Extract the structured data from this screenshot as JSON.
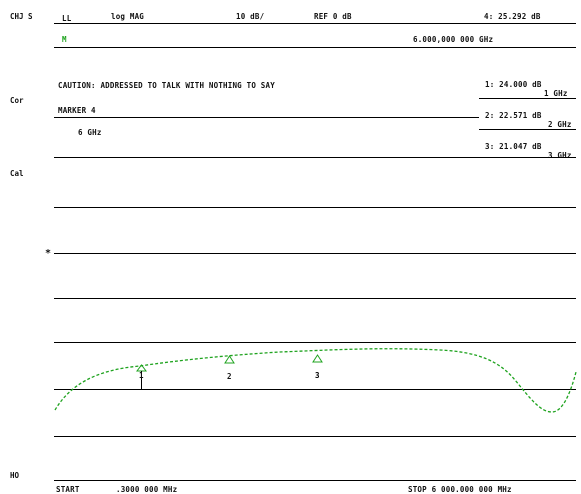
{
  "left_labels": {
    "channel": "CHJ S",
    "cor": "Cor",
    "cal": "Cal",
    "star": "*",
    "bottom": "HO"
  },
  "header": {
    "format_short": "LL",
    "format": "log MAG",
    "scale": "10 dB/",
    "ref": "REF 0 dB",
    "marker_readout": "4: 25.292 dB",
    "marker_freq": "6.000,000 000 GHz",
    "active": "M"
  },
  "caution": {
    "line1": "CAUTION: ADDRESSED TO TALK WITH NOTHING TO SAY",
    "line2": "MARKER 4",
    "line3": "6 GHz"
  },
  "markers": [
    {
      "value": "1: 24.000 dB",
      "freq": "1 GHz"
    },
    {
      "value": "2: 22.571 dB",
      "freq": "2 GHz"
    },
    {
      "value": "3: 21.047 dB",
      "freq": "3 GHz"
    }
  ],
  "footer": {
    "start": "START",
    "start_freq": ".3000 000 MHz",
    "stop": "STOP 6 000.000 000 MHz"
  },
  "trace": {
    "color": "#1fa31f",
    "marker_labels": [
      "1",
      "2",
      "3"
    ]
  }
}
